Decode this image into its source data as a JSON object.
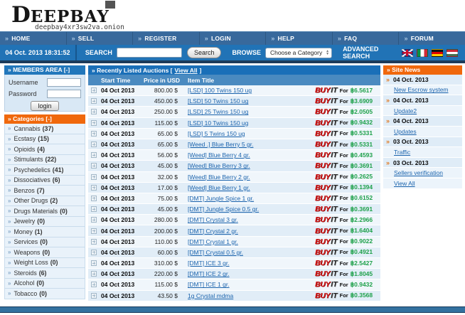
{
  "logo": {
    "big_letter": "D",
    "rest": "EEPBAY",
    "onion": "deepbay4xr3sw2va.onion"
  },
  "icons": {
    "arrow": "»",
    "select_up": "▲",
    "select_down": "▼"
  },
  "nav": {
    "items": [
      "HOME",
      "SELL",
      "REGISTER",
      "LOGIN",
      "HELP",
      "FAQ",
      "FORUM"
    ]
  },
  "searchbar": {
    "datetime": "04 Oct. 2013 18:31:52",
    "search_label": "SEARCH",
    "search_value": "",
    "search_button": "Search",
    "browse_label": "BROWSE",
    "category_select": "Choose a Category",
    "advanced_search": "ADVANCED SEARCH",
    "flags": [
      "uk-flag-icon",
      "italy-flag-icon",
      "germany-flag-icon",
      "hungary-flag-icon"
    ]
  },
  "members": {
    "title": "» MEMBERS AREA [-]",
    "username_label": "Username",
    "password_label": "Password",
    "login_button": "login"
  },
  "categories": {
    "title": "» Categories [-]",
    "items": [
      {
        "label": "Cannabis",
        "count": "(37)"
      },
      {
        "label": "Ecstasy",
        "count": "(15)"
      },
      {
        "label": "Opioids",
        "count": "(4)"
      },
      {
        "label": "Stimulants",
        "count": "(22)"
      },
      {
        "label": "Psychedelics",
        "count": "(41)"
      },
      {
        "label": "Dissociatives",
        "count": "(6)"
      },
      {
        "label": "Benzos",
        "count": "(7)"
      },
      {
        "label": "Other Drugs",
        "count": "(2)"
      },
      {
        "label": "Drugs Materials",
        "count": "(0)"
      },
      {
        "label": "Jewelry",
        "count": "(0)"
      },
      {
        "label": "Money",
        "count": "(1)"
      },
      {
        "label": "Services",
        "count": "(0)"
      },
      {
        "label": "Weapons",
        "count": "(0)"
      },
      {
        "label": "Weight Loss",
        "count": "(0)"
      },
      {
        "label": "Steroids",
        "count": "(6)"
      },
      {
        "label": "Alcohol",
        "count": "(0)"
      },
      {
        "label": "Tobacco",
        "count": "(0)"
      }
    ]
  },
  "auctions": {
    "header_prefix": "» Recently Listed Auctions [",
    "view_all": "View All",
    "header_suffix": "]",
    "columns": {
      "start_time": "Start Time",
      "price": "Price in USD",
      "title": "Item Title"
    },
    "buy_word": "BUY",
    "it_word": "IT",
    "for_word": "For",
    "rows": [
      {
        "date": "04 Oct 2013",
        "price": "800.00 $",
        "title": "[LSD] 100 Twins 150 ug",
        "btc": "฿6.5617"
      },
      {
        "date": "04 Oct 2013",
        "price": "450.00 $",
        "title": "[LSD] 50 Twins 150 ug",
        "btc": "฿3.6909"
      },
      {
        "date": "04 Oct 2013",
        "price": "250.00 $",
        "title": "[LSD] 25 Twins 150 ug",
        "btc": "฿2.0505"
      },
      {
        "date": "04 Oct 2013",
        "price": "115.00 $",
        "title": "[LSD] 10 Twins 150 ug",
        "btc": "฿0.9432"
      },
      {
        "date": "04 Oct 2013",
        "price": "65.00 $",
        "title": "[LSD] 5 Twins 150 ug",
        "btc": "฿0.5331"
      },
      {
        "date": "04 Oct 2013",
        "price": "65.00 $",
        "title": "[Weed .] Blue Berry 5 gr.",
        "btc": "฿0.5331"
      },
      {
        "date": "04 Oct 2013",
        "price": "56.00 $",
        "title": "[Weed] Blue Berry 4 gr.",
        "btc": "฿0.4593"
      },
      {
        "date": "04 Oct 2013",
        "price": "45.00 $",
        "title": "[Weed] Blue Berry 3 gr.",
        "btc": "฿0.3691"
      },
      {
        "date": "04 Oct 2013",
        "price": "32.00 $",
        "title": "[Weed] Blue Berry 2 gr.",
        "btc": "฿0.2625"
      },
      {
        "date": "04 Oct 2013",
        "price": "17.00 $",
        "title": "[Weed] Blue Berry 1 gr.",
        "btc": "฿0.1394"
      },
      {
        "date": "04 Oct 2013",
        "price": "75.00 $",
        "title": "[DMT] Jungle Spice 1 gr.",
        "btc": "฿0.6152"
      },
      {
        "date": "04 Oct 2013",
        "price": "45.00 $",
        "title": "[DMT] Jungle Spice 0.5 gr.",
        "btc": "฿0.3691"
      },
      {
        "date": "04 Oct 2013",
        "price": "280.00 $",
        "title": "[DMT] Crystal 3 gr.",
        "btc": "฿2.2966"
      },
      {
        "date": "04 Oct 2013",
        "price": "200.00 $",
        "title": "[DMT] Crystal 2 gr.",
        "btc": "฿1.6404"
      },
      {
        "date": "04 Oct 2013",
        "price": "110.00 $",
        "title": "[DMT] Crystal 1 gr.",
        "btc": "฿0.9022"
      },
      {
        "date": "04 Oct 2013",
        "price": "60.00 $",
        "title": "[DMT] Crystal 0.5 gr.",
        "btc": "฿0.4921"
      },
      {
        "date": "04 Oct 2013",
        "price": "310.00 $",
        "title": "[DMT] ICE 3 gr.",
        "btc": "฿2.5427"
      },
      {
        "date": "04 Oct 2013",
        "price": "220.00 $",
        "title": "[DMT] ICE 2 gr.",
        "btc": "฿1.8045"
      },
      {
        "date": "04 Oct 2013",
        "price": "115.00 $",
        "title": "[DMT] ICE 1 gr.",
        "btc": "฿0.9432"
      },
      {
        "date": "04 Oct 2013",
        "price": "43.50 $",
        "title": "1g Crystal mdma",
        "btc": "฿0.3568"
      }
    ]
  },
  "news": {
    "title": "» Site News",
    "items": [
      {
        "date": "04 Oct. 2013",
        "link": "New Escrow system"
      },
      {
        "date": "04 Oct. 2013",
        "link": "Update2"
      },
      {
        "date": "04 Oct. 2013",
        "link": "Updates"
      },
      {
        "date": "03 Oct. 2013",
        "link": "Traffic"
      },
      {
        "date": "03 Oct. 2013",
        "link": "Sellers verification"
      }
    ],
    "view_all": "View All"
  },
  "colors": {
    "nav_blue": "#38699c",
    "search_blue": "#2173b6",
    "header_blue": "#1a6fb8",
    "column_blue": "#4a8ac0",
    "accent_orange": "#f0680c",
    "link_blue": "#1c64ad",
    "btc_green": "#1fa14b",
    "buy_red": "#cf1212",
    "navy": "#1c3b5a"
  }
}
